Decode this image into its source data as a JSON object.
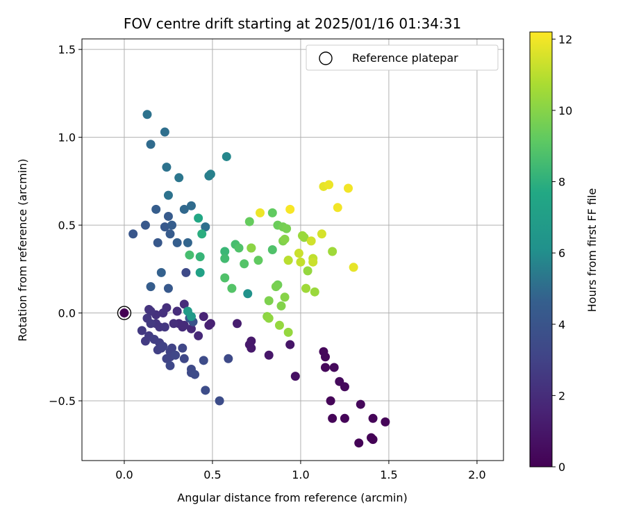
{
  "chart_data": {
    "type": "scatter",
    "title": "FOV centre drift starting at 2025/01/16 01:34:31",
    "xlabel": "Angular distance from reference (arcmin)",
    "ylabel": "Rotation from reference (arcmin)",
    "xlim": [
      -0.24,
      2.15
    ],
    "ylim": [
      -0.84,
      1.56
    ],
    "xticks": [
      0.0,
      0.5,
      1.0,
      1.5,
      2.0
    ],
    "xtick_labels": [
      "0.0",
      "0.5",
      "1.0",
      "1.5",
      "2.0"
    ],
    "yticks": [
      -0.5,
      0.0,
      0.5,
      1.0,
      1.5
    ],
    "ytick_labels": [
      "−0.5",
      "0.0",
      "0.5",
      "1.0",
      "1.5"
    ],
    "grid": true,
    "legend": {
      "label": "Reference platepar",
      "placement": "top-right",
      "marker": "open-circle"
    },
    "reference_point": {
      "x": 0.0,
      "y": 0.0,
      "label": "Reference platepar"
    },
    "colorbar": {
      "label": "Hours from first FF file",
      "colormap": "viridis",
      "range": [
        0,
        12.2
      ],
      "ticks": [
        0,
        2,
        4,
        6,
        8,
        10,
        12
      ],
      "tick_labels": [
        "0",
        "2",
        "4",
        "6",
        "8",
        "10",
        "12"
      ]
    },
    "points": [
      {
        "x": 1.13,
        "y": -0.22,
        "h": 0.3
      },
      {
        "x": 1.14,
        "y": -0.25,
        "h": 0.3
      },
      {
        "x": 1.14,
        "y": -0.31,
        "h": 0.3
      },
      {
        "x": 1.19,
        "y": -0.31,
        "h": 0.4
      },
      {
        "x": 1.22,
        "y": -0.39,
        "h": 0.4
      },
      {
        "x": 1.25,
        "y": -0.42,
        "h": 0.4
      },
      {
        "x": 1.17,
        "y": -0.5,
        "h": 0.2
      },
      {
        "x": 1.18,
        "y": -0.6,
        "h": 0.2
      },
      {
        "x": 1.25,
        "y": -0.6,
        "h": 0.2
      },
      {
        "x": 1.34,
        "y": -0.52,
        "h": 0.3
      },
      {
        "x": 1.41,
        "y": -0.6,
        "h": 0.2
      },
      {
        "x": 1.48,
        "y": -0.62,
        "h": 0.2
      },
      {
        "x": 1.33,
        "y": -0.74,
        "h": 0.1
      },
      {
        "x": 1.4,
        "y": -0.71,
        "h": 0.1
      },
      {
        "x": 1.41,
        "y": -0.72,
        "h": 0.1
      },
      {
        "x": 0.97,
        "y": -0.36,
        "h": 0.7
      },
      {
        "x": 0.94,
        "y": -0.18,
        "h": 0.9
      },
      {
        "x": 0.82,
        "y": -0.24,
        "h": 1.0
      },
      {
        "x": 0.72,
        "y": -0.16,
        "h": 1.1
      },
      {
        "x": 0.71,
        "y": -0.18,
        "h": 1.1
      },
      {
        "x": 0.72,
        "y": -0.2,
        "h": 1.1
      },
      {
        "x": 0.64,
        "y": -0.06,
        "h": 1.3
      },
      {
        "x": 0.49,
        "y": -0.06,
        "h": 1.5
      },
      {
        "x": 0.48,
        "y": -0.07,
        "h": 1.5
      },
      {
        "x": 0.45,
        "y": -0.02,
        "h": 1.6
      },
      {
        "x": 0.42,
        "y": -0.13,
        "h": 1.8
      },
      {
        "x": 0.38,
        "y": -0.09,
        "h": 1.8
      },
      {
        "x": 0.34,
        "y": -0.07,
        "h": 1.9
      },
      {
        "x": 0.33,
        "y": -0.08,
        "h": 1.9
      },
      {
        "x": 0.31,
        "y": -0.06,
        "h": 1.9
      },
      {
        "x": 0.34,
        "y": 0.05,
        "h": 2.0
      },
      {
        "x": 0.3,
        "y": 0.01,
        "h": 2.0
      },
      {
        "x": 0.28,
        "y": -0.06,
        "h": 2.1
      },
      {
        "x": 0.24,
        "y": 0.03,
        "h": 2.1
      },
      {
        "x": 0.22,
        "y": 0.0,
        "h": 2.2
      },
      {
        "x": 0.18,
        "y": -0.01,
        "h": 2.2
      },
      {
        "x": 0.14,
        "y": 0.02,
        "h": 2.3
      },
      {
        "x": 0.15,
        "y": 0.01,
        "h": 2.3
      },
      {
        "x": 0.18,
        "y": -0.06,
        "h": 2.4
      },
      {
        "x": 0.2,
        "y": -0.08,
        "h": 2.4
      },
      {
        "x": 0.23,
        "y": -0.08,
        "h": 2.5
      },
      {
        "x": 0.13,
        "y": -0.03,
        "h": 2.5
      },
      {
        "x": 0.15,
        "y": -0.06,
        "h": 2.6
      },
      {
        "x": 0.1,
        "y": -0.1,
        "h": 2.6
      },
      {
        "x": 0.12,
        "y": -0.16,
        "h": 2.7
      },
      {
        "x": 0.14,
        "y": -0.13,
        "h": 2.7
      },
      {
        "x": 0.17,
        "y": -0.15,
        "h": 2.8
      },
      {
        "x": 0.2,
        "y": -0.17,
        "h": 2.8
      },
      {
        "x": 0.21,
        "y": -0.2,
        "h": 2.9
      },
      {
        "x": 0.19,
        "y": -0.21,
        "h": 2.9
      },
      {
        "x": 0.22,
        "y": -0.19,
        "h": 3.0
      },
      {
        "x": 0.26,
        "y": -0.22,
        "h": 3.0
      },
      {
        "x": 0.27,
        "y": -0.2,
        "h": 3.0
      },
      {
        "x": 0.26,
        "y": -0.25,
        "h": 3.1
      },
      {
        "x": 0.24,
        "y": -0.26,
        "h": 3.1
      },
      {
        "x": 0.29,
        "y": -0.24,
        "h": 3.2
      },
      {
        "x": 0.33,
        "y": -0.2,
        "h": 3.2
      },
      {
        "x": 0.34,
        "y": -0.26,
        "h": 3.3
      },
      {
        "x": 0.26,
        "y": -0.3,
        "h": 3.3
      },
      {
        "x": 0.38,
        "y": -0.32,
        "h": 3.4
      },
      {
        "x": 0.38,
        "y": -0.34,
        "h": 3.4
      },
      {
        "x": 0.4,
        "y": -0.35,
        "h": 3.5
      },
      {
        "x": 0.45,
        "y": -0.27,
        "h": 3.5
      },
      {
        "x": 0.46,
        "y": -0.44,
        "h": 3.6
      },
      {
        "x": 0.54,
        "y": -0.5,
        "h": 3.6
      },
      {
        "x": 0.59,
        "y": -0.26,
        "h": 3.4
      },
      {
        "x": 0.39,
        "y": -0.05,
        "h": 3.9
      },
      {
        "x": 0.37,
        "y": -0.03,
        "h": 4.0
      },
      {
        "x": 0.35,
        "y": 0.23,
        "h": 3.4
      },
      {
        "x": 0.25,
        "y": 0.14,
        "h": 4.3
      },
      {
        "x": 0.15,
        "y": 0.15,
        "h": 4.5
      },
      {
        "x": 0.21,
        "y": 0.23,
        "h": 4.7
      },
      {
        "x": 0.05,
        "y": 0.45,
        "h": 4.1
      },
      {
        "x": 0.12,
        "y": 0.5,
        "h": 4.3
      },
      {
        "x": 0.19,
        "y": 0.4,
        "h": 4.2
      },
      {
        "x": 0.23,
        "y": 0.49,
        "h": 4.3
      },
      {
        "x": 0.26,
        "y": 0.45,
        "h": 4.4
      },
      {
        "x": 0.27,
        "y": 0.5,
        "h": 4.5
      },
      {
        "x": 0.25,
        "y": 0.55,
        "h": 4.4
      },
      {
        "x": 0.3,
        "y": 0.4,
        "h": 4.6
      },
      {
        "x": 0.36,
        "y": 0.4,
        "h": 4.8
      },
      {
        "x": 0.18,
        "y": 0.59,
        "h": 4.5
      },
      {
        "x": 0.34,
        "y": 0.59,
        "h": 4.9
      },
      {
        "x": 0.38,
        "y": 0.61,
        "h": 5.0
      },
      {
        "x": 0.46,
        "y": 0.49,
        "h": 5.1
      },
      {
        "x": 0.25,
        "y": 0.67,
        "h": 5.2
      },
      {
        "x": 0.31,
        "y": 0.77,
        "h": 5.3
      },
      {
        "x": 0.24,
        "y": 0.83,
        "h": 5.2
      },
      {
        "x": 0.48,
        "y": 0.78,
        "h": 5.5
      },
      {
        "x": 0.49,
        "y": 0.79,
        "h": 5.6
      },
      {
        "x": 0.58,
        "y": 0.89,
        "h": 5.8
      },
      {
        "x": 0.15,
        "y": 0.96,
        "h": 5.0
      },
      {
        "x": 0.23,
        "y": 1.03,
        "h": 5.1
      },
      {
        "x": 0.13,
        "y": 1.13,
        "h": 5.2
      },
      {
        "x": 0.7,
        "y": 0.11,
        "h": 6.2
      },
      {
        "x": 0.38,
        "y": -0.02,
        "h": 6.7
      },
      {
        "x": 0.36,
        "y": 0.01,
        "h": 6.8
      },
      {
        "x": 0.43,
        "y": 0.23,
        "h": 7.2
      },
      {
        "x": 0.42,
        "y": 0.54,
        "h": 7.6
      },
      {
        "x": 0.44,
        "y": 0.45,
        "h": 7.9
      },
      {
        "x": 0.43,
        "y": 0.32,
        "h": 8.2
      },
      {
        "x": 0.37,
        "y": 0.33,
        "h": 8.6
      },
      {
        "x": 0.57,
        "y": 0.35,
        "h": 8.3
      },
      {
        "x": 0.57,
        "y": 0.31,
        "h": 8.5
      },
      {
        "x": 0.57,
        "y": 0.2,
        "h": 8.8
      },
      {
        "x": 0.61,
        "y": 0.14,
        "h": 8.9
      },
      {
        "x": 0.63,
        "y": 0.39,
        "h": 8.6
      },
      {
        "x": 0.65,
        "y": 0.37,
        "h": 8.8
      },
      {
        "x": 0.68,
        "y": 0.28,
        "h": 8.9
      },
      {
        "x": 0.72,
        "y": 0.37,
        "h": 9.0
      },
      {
        "x": 0.76,
        "y": 0.3,
        "h": 9.2
      },
      {
        "x": 0.71,
        "y": 0.52,
        "h": 9.3
      },
      {
        "x": 0.84,
        "y": 0.36,
        "h": 8.8
      },
      {
        "x": 0.84,
        "y": 0.57,
        "h": 9.2
      },
      {
        "x": 0.87,
        "y": 0.5,
        "h": 9.4
      },
      {
        "x": 0.9,
        "y": 0.49,
        "h": 9.6
      },
      {
        "x": 0.92,
        "y": 0.48,
        "h": 9.7
      },
      {
        "x": 0.9,
        "y": 0.41,
        "h": 9.8
      },
      {
        "x": 0.91,
        "y": 0.42,
        "h": 10.0
      },
      {
        "x": 0.87,
        "y": 0.16,
        "h": 9.5
      },
      {
        "x": 0.86,
        "y": 0.15,
        "h": 9.7
      },
      {
        "x": 0.82,
        "y": 0.07,
        "h": 9.8
      },
      {
        "x": 0.89,
        "y": 0.04,
        "h": 9.9
      },
      {
        "x": 0.91,
        "y": 0.09,
        "h": 10.0
      },
      {
        "x": 0.81,
        "y": -0.02,
        "h": 10.1
      },
      {
        "x": 0.82,
        "y": -0.03,
        "h": 10.2
      },
      {
        "x": 0.88,
        "y": -0.07,
        "h": 10.3
      },
      {
        "x": 0.93,
        "y": -0.11,
        "h": 10.3
      },
      {
        "x": 0.72,
        "y": 0.37,
        "h": 10.1
      },
      {
        "x": 1.02,
        "y": 0.43,
        "h": 10.3
      },
      {
        "x": 1.01,
        "y": 0.44,
        "h": 10.4
      },
      {
        "x": 1.04,
        "y": 0.24,
        "h": 10.3
      },
      {
        "x": 1.03,
        "y": 0.14,
        "h": 10.5
      },
      {
        "x": 1.08,
        "y": 0.12,
        "h": 10.4
      },
      {
        "x": 1.18,
        "y": 0.35,
        "h": 10.5
      },
      {
        "x": 0.93,
        "y": 0.3,
        "h": 10.9
      },
      {
        "x": 0.93,
        "y": 0.3,
        "h": 11.0
      },
      {
        "x": 0.99,
        "y": 0.34,
        "h": 11.3
      },
      {
        "x": 1.0,
        "y": 0.29,
        "h": 11.2
      },
      {
        "x": 1.07,
        "y": 0.31,
        "h": 11.1
      },
      {
        "x": 1.07,
        "y": 0.29,
        "h": 11.3
      },
      {
        "x": 1.06,
        "y": 0.41,
        "h": 11.4
      },
      {
        "x": 1.12,
        "y": 0.45,
        "h": 11.5
      },
      {
        "x": 1.13,
        "y": 0.72,
        "h": 11.8
      },
      {
        "x": 1.16,
        "y": 0.73,
        "h": 11.9
      },
      {
        "x": 1.27,
        "y": 0.71,
        "h": 12.0
      },
      {
        "x": 1.21,
        "y": 0.6,
        "h": 12.0
      },
      {
        "x": 1.3,
        "y": 0.26,
        "h": 11.8
      },
      {
        "x": 0.77,
        "y": 0.57,
        "h": 11.9
      },
      {
        "x": 0.94,
        "y": 0.59,
        "h": 12.1
      },
      {
        "x": 0.0,
        "y": 0.0,
        "h": 0.0
      }
    ]
  }
}
